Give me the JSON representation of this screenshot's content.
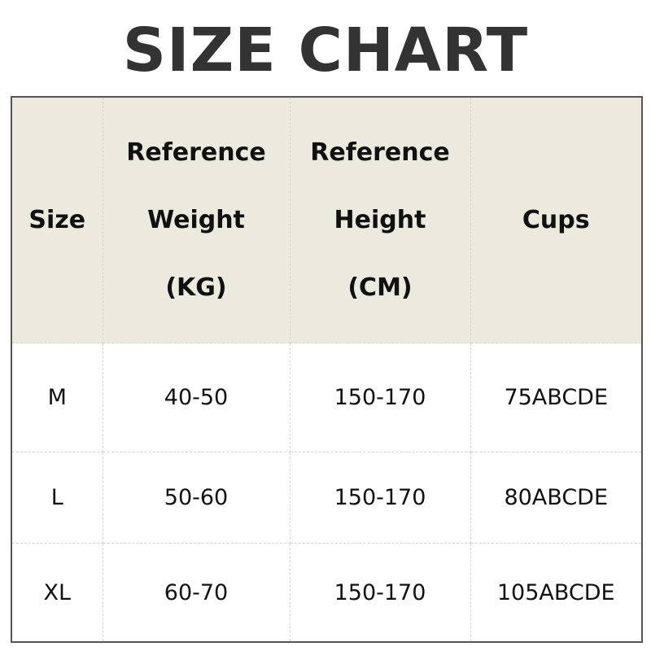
{
  "title": "SIZE CHART",
  "table": {
    "headers": [
      [
        "Size"
      ],
      [
        "Reference",
        "Weight",
        "(KG)"
      ],
      [
        "Reference",
        "Height",
        "(CM)"
      ],
      [
        "Cups"
      ]
    ],
    "rows": [
      [
        "M",
        "40-50",
        "150-170",
        "75ABCDE"
      ],
      [
        "L",
        "50-60",
        "150-170",
        "80ABCDE"
      ],
      [
        "XL",
        "60-70",
        "150-170",
        "105ABCDE"
      ]
    ]
  },
  "colors": {
    "header_bg": "#ECE9DF",
    "title": "#333333",
    "border": "#555555"
  }
}
